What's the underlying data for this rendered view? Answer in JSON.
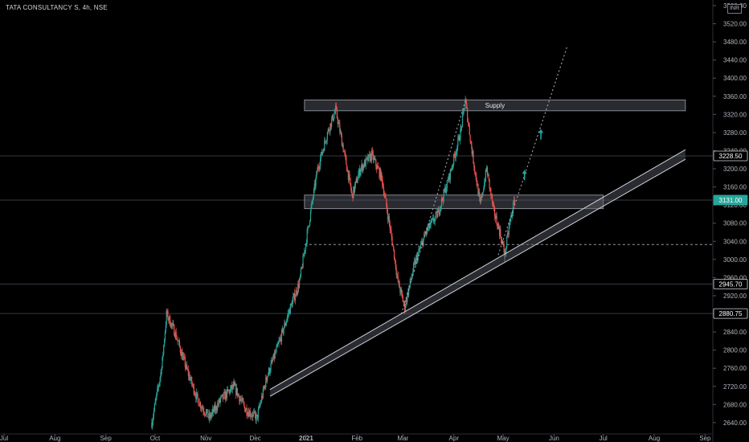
{
  "header": {
    "symbol": "TATA CONSULTANCY S",
    "interval": "4h",
    "exchange": "NSE",
    "title": "TATA CONSULTANCY S, 4h, NSE"
  },
  "currency": "INR",
  "colors": {
    "up": "#26a69a",
    "down": "#ef5350",
    "background": "#000000",
    "grid_line": "#2a2e39",
    "zone": "#5d606b",
    "arrow": "#26a69a"
  },
  "chart_data": {
    "type": "candlestick",
    "title": "TATA CONSULTANCY S, 4h, NSE",
    "x_ticks": [
      "Jul",
      "Aug",
      "Sep",
      "Oct",
      "Nov",
      "Dec",
      "2021",
      "Feb",
      "Mar",
      "Apr",
      "May",
      "Jun",
      "Jul",
      "Aug",
      "Sep"
    ],
    "x_tick_dates": [
      "2020-07-01",
      "2020-08-01",
      "2020-09-01",
      "2020-10-01",
      "2020-11-01",
      "2020-12-01",
      "2021-01-01",
      "2021-02-01",
      "2021-03-01",
      "2021-04-01",
      "2021-05-01",
      "2021-06-01",
      "2021-07-01",
      "2021-08-01",
      "2021-09-01"
    ],
    "y_ticks": [
      2640,
      2680,
      2720,
      2760,
      2800,
      2840,
      2880,
      2920,
      2960,
      3000,
      3040,
      3080,
      3120,
      3160,
      3200,
      3240,
      3280,
      3320,
      3360,
      3400,
      3440,
      3480,
      3520,
      3560
    ],
    "ylim": [
      2632,
      3565
    ],
    "price_labels": [
      {
        "value": 3228.5,
        "text": "3228.50",
        "style": "level"
      },
      {
        "value": 3131.0,
        "text": "3131.00",
        "style": "last"
      },
      {
        "value": 2945.7,
        "text": "2945.70",
        "style": "level"
      },
      {
        "value": 2880.75,
        "text": "2880.75",
        "style": "level"
      }
    ],
    "horizontal_lines": [
      3228.5,
      3131,
      2945.7,
      2880.75
    ],
    "dashed_level": 3033,
    "zones": [
      {
        "label": "Supply",
        "start": "2020-12-31",
        "end": "2021-08-20",
        "top": 3352,
        "bottom": 3328
      },
      {
        "label": "",
        "start": "2020-12-31",
        "end": "2021-07-01",
        "top": 3142,
        "bottom": 3112
      }
    ],
    "trend_channel": {
      "start_date": "2020-12-10",
      "start_lower": 2698,
      "start_upper": 2713,
      "end_date": "2021-08-20",
      "end_lower": 3221,
      "end_upper": 3242
    },
    "projection": [
      {
        "date": "2021-02-28",
        "value": 2880
      },
      {
        "date": "2021-04-08",
        "value": 3350
      }
    ],
    "projection_up": [
      {
        "date": "2021-04-28",
        "value": 3010
      },
      {
        "date": "2021-06-09",
        "value": 3470
      }
    ],
    "arrows": [
      {
        "date": "2021-05-14",
        "value": 3196
      },
      {
        "date": "2021-05-24",
        "value": 3286
      }
    ],
    "waypoints": [
      {
        "date": "2020-09-29",
        "value": 2640
      },
      {
        "date": "2020-10-05",
        "value": 2760
      },
      {
        "date": "2020-10-08",
        "value": 2880
      },
      {
        "date": "2020-10-13",
        "value": 2840
      },
      {
        "date": "2020-10-20",
        "value": 2760
      },
      {
        "date": "2020-10-27",
        "value": 2690
      },
      {
        "date": "2020-11-03",
        "value": 2650
      },
      {
        "date": "2020-11-10",
        "value": 2690
      },
      {
        "date": "2020-11-18",
        "value": 2720
      },
      {
        "date": "2020-11-25",
        "value": 2670
      },
      {
        "date": "2020-12-02",
        "value": 2650
      },
      {
        "date": "2020-12-08",
        "value": 2740
      },
      {
        "date": "2020-12-15",
        "value": 2810
      },
      {
        "date": "2020-12-22",
        "value": 2890
      },
      {
        "date": "2020-12-28",
        "value": 2950
      },
      {
        "date": "2021-01-04",
        "value": 3110
      },
      {
        "date": "2021-01-08",
        "value": 3200
      },
      {
        "date": "2021-01-14",
        "value": 3280
      },
      {
        "date": "2021-01-19",
        "value": 3330
      },
      {
        "date": "2021-01-25",
        "value": 3220
      },
      {
        "date": "2021-01-29",
        "value": 3140
      },
      {
        "date": "2021-02-03",
        "value": 3200
      },
      {
        "date": "2021-02-10",
        "value": 3230
      },
      {
        "date": "2021-02-16",
        "value": 3180
      },
      {
        "date": "2021-02-22",
        "value": 3050
      },
      {
        "date": "2021-02-26",
        "value": 2950
      },
      {
        "date": "2021-03-02",
        "value": 2895
      },
      {
        "date": "2021-03-08",
        "value": 2990
      },
      {
        "date": "2021-03-15",
        "value": 3060
      },
      {
        "date": "2021-03-22",
        "value": 3100
      },
      {
        "date": "2021-03-29",
        "value": 3180
      },
      {
        "date": "2021-04-05",
        "value": 3280
      },
      {
        "date": "2021-04-08",
        "value": 3350
      },
      {
        "date": "2021-04-12",
        "value": 3240
      },
      {
        "date": "2021-04-17",
        "value": 3120
      },
      {
        "date": "2021-04-21",
        "value": 3200
      },
      {
        "date": "2021-04-25",
        "value": 3110
      },
      {
        "date": "2021-04-29",
        "value": 3060
      },
      {
        "date": "2021-05-02",
        "value": 3010
      },
      {
        "date": "2021-05-05",
        "value": 3080
      },
      {
        "date": "2021-05-08",
        "value": 3131
      }
    ]
  }
}
